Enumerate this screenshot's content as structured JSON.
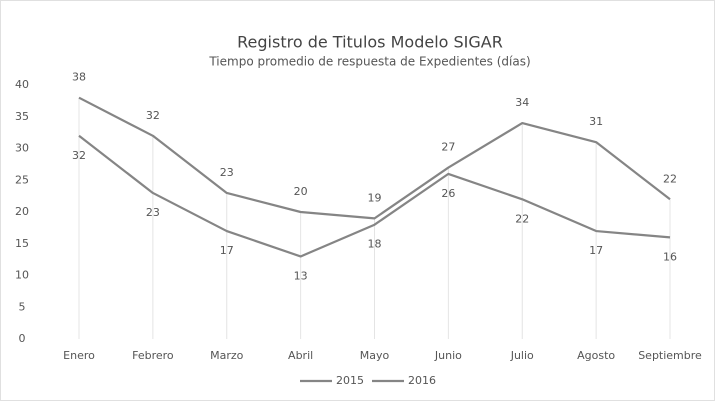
{
  "chart_data": {
    "type": "line",
    "title": "Registro de Titulos Modelo SIGAR",
    "subtitle": "Tiempo promedio de respuesta de Expedientes (días)",
    "categories": [
      "Enero",
      "Febrero",
      "Marzo",
      "Abril",
      "Mayo",
      "Junio",
      "Julio",
      "Agosto",
      "Septiembre"
    ],
    "series": [
      {
        "name": "2015",
        "color": "#858585",
        "values": [
          38,
          32,
          23,
          20,
          19,
          27,
          34,
          31,
          22
        ]
      },
      {
        "name": "2016",
        "color": "#858585",
        "values": [
          32,
          23,
          17,
          13,
          18,
          26,
          22,
          17,
          16
        ]
      }
    ],
    "ylim": [
      0,
      40
    ],
    "yticks": [
      0,
      5,
      10,
      15,
      20,
      25,
      30,
      35,
      40
    ],
    "grid": false,
    "legend": "bottom"
  }
}
